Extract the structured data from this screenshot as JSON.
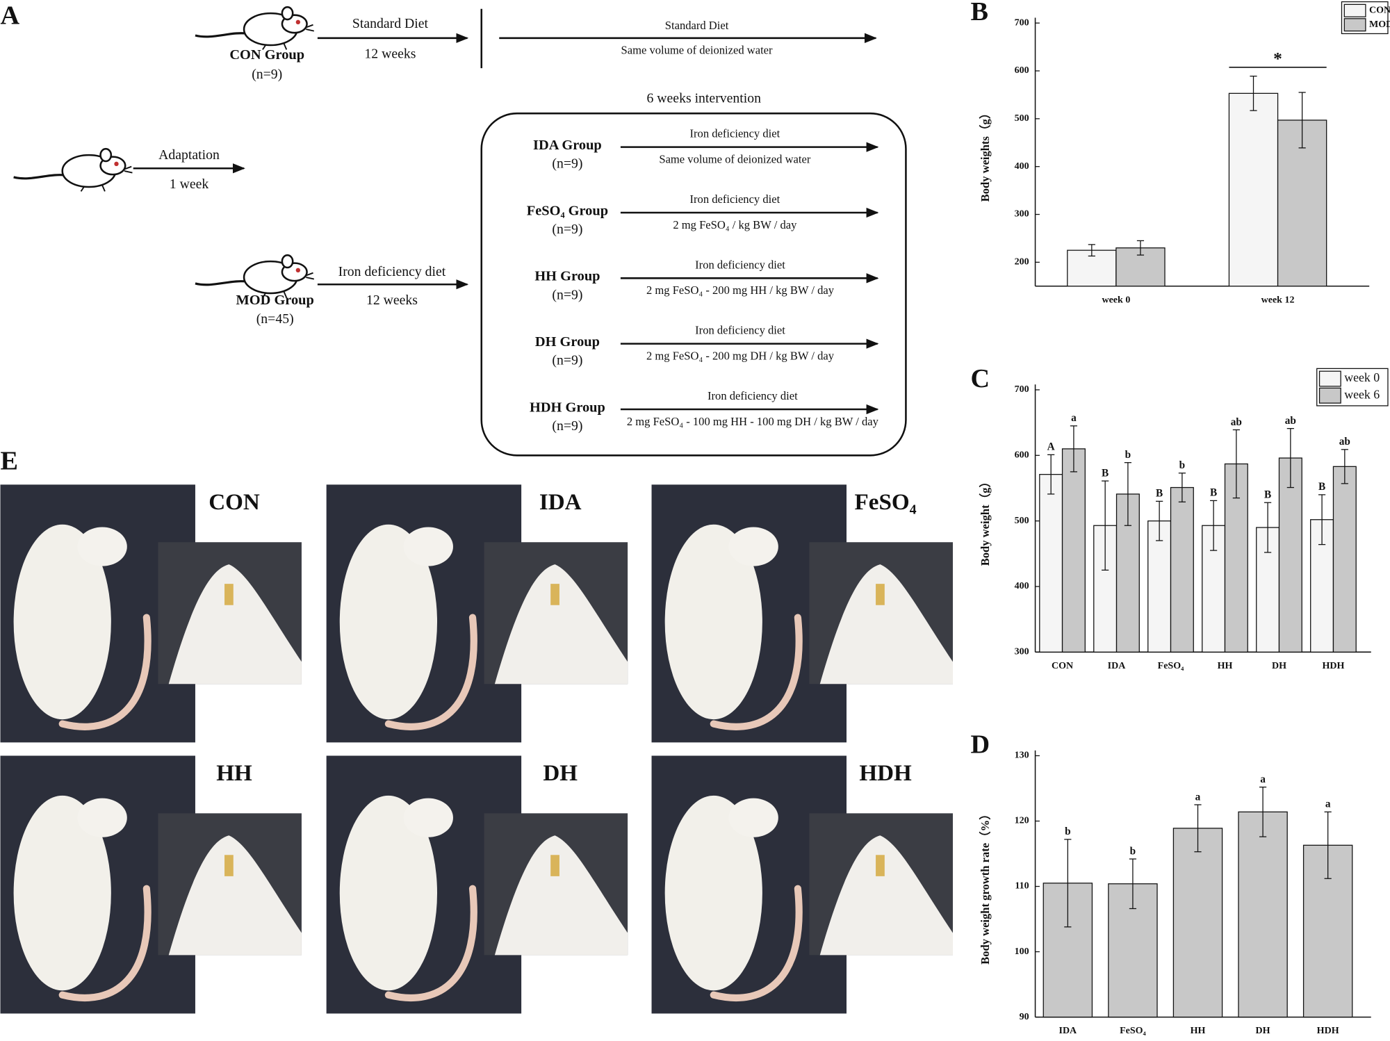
{
  "diagram": {
    "panel_label": "A",
    "con": {
      "name": "CON Group",
      "n": "(n=9)",
      "diet": "Standard Diet",
      "duration": "12 weeks",
      "followup_diet": "Standard Diet",
      "followup_treatment": "Same volume of deionized water"
    },
    "adaptation": {
      "label": "Adaptation",
      "duration": "1 week"
    },
    "mod": {
      "name": "MOD Group",
      "n": "(n=45)",
      "diet": "Iron deficiency diet",
      "duration": "12 weeks"
    },
    "intervention_title": "6 weeks intervention",
    "groups": [
      {
        "name": "IDA Group",
        "n": "(n=9)",
        "diet": "Iron deficiency diet",
        "treatment": "Same volume of deionized water"
      },
      {
        "name": "FeSO₄ Group",
        "n": "(n=9)",
        "diet": "Iron deficiency diet",
        "treatment": "2 mg FeSO₄ / kg BW / day"
      },
      {
        "name": "HH Group",
        "n": "(n=9)",
        "diet": "Iron deficiency diet",
        "treatment": "2 mg FeSO₄ - 200 mg HH / kg BW / day"
      },
      {
        "name": "DH Group",
        "n": "(n=9)",
        "diet": "Iron deficiency diet",
        "treatment": "2 mg FeSO₄ - 200 mg DH / kg BW / day"
      },
      {
        "name": "HDH Group",
        "n": "(n=9)",
        "diet": "Iron deficiency diet",
        "treatment": "2 mg FeSO₄ - 100 mg HH - 100 mg DH / kg BW / day"
      }
    ]
  },
  "chart_data": [
    {
      "type": "bar",
      "panel_label": "B",
      "ylabel": "Body weights（g）",
      "categories": [
        "week 0",
        "week 12"
      ],
      "series": [
        {
          "name": "CON",
          "color": "#f5f5f5",
          "values": [
            225,
            553
          ],
          "errors": [
            12,
            36
          ]
        },
        {
          "name": "MOD",
          "color": "#c8c8c8",
          "values": [
            230,
            497
          ],
          "errors": [
            15,
            58
          ]
        }
      ],
      "ylim": [
        150,
        700
      ],
      "yticks": [
        200,
        300,
        400,
        500,
        600,
        700
      ],
      "legend": "upper right",
      "significance": {
        "text": "*",
        "category": "week 12"
      }
    },
    {
      "type": "bar",
      "panel_label": "C",
      "ylabel": "Body weight（g）",
      "categories": [
        "CON",
        "IDA",
        "FeSO₄",
        "HH",
        "DH",
        "HDH"
      ],
      "series": [
        {
          "name": "week 0",
          "color": "#f5f5f5",
          "values": [
            571,
            493,
            500,
            493,
            490,
            502
          ],
          "errors": [
            30,
            68,
            30,
            38,
            38,
            38
          ],
          "labels": [
            "A",
            "B",
            "B",
            "B",
            "B",
            "B"
          ]
        },
        {
          "name": "week 6",
          "color": "#c8c8c8",
          "values": [
            610,
            541,
            551,
            587,
            596,
            583
          ],
          "errors": [
            35,
            48,
            22,
            52,
            45,
            26
          ],
          "labels": [
            "a",
            "b",
            "b",
            "ab",
            "ab",
            "ab"
          ]
        }
      ],
      "ylim": [
        300,
        700
      ],
      "yticks": [
        300,
        400,
        500,
        600,
        700
      ],
      "legend": "upper right"
    },
    {
      "type": "bar",
      "panel_label": "D",
      "ylabel": "Body weight growth rate（%）",
      "categories": [
        "IDA",
        "FeSO₄",
        "HH",
        "DH",
        "HDH"
      ],
      "series": [
        {
          "color": "#c8c8c8",
          "values": [
            110.5,
            110.4,
            118.9,
            121.4,
            116.3
          ],
          "errors": [
            6.7,
            3.8,
            3.6,
            3.8,
            5.1
          ],
          "labels": [
            "b",
            "b",
            "a",
            "a",
            "a"
          ]
        }
      ],
      "ylim": [
        90,
        130
      ],
      "yticks": [
        90,
        100,
        110,
        120,
        130
      ]
    }
  ],
  "photos": {
    "panel_label": "E",
    "labels": [
      "CON",
      "IDA",
      "FeSO₄",
      "HH",
      "DH",
      "HDH"
    ]
  }
}
